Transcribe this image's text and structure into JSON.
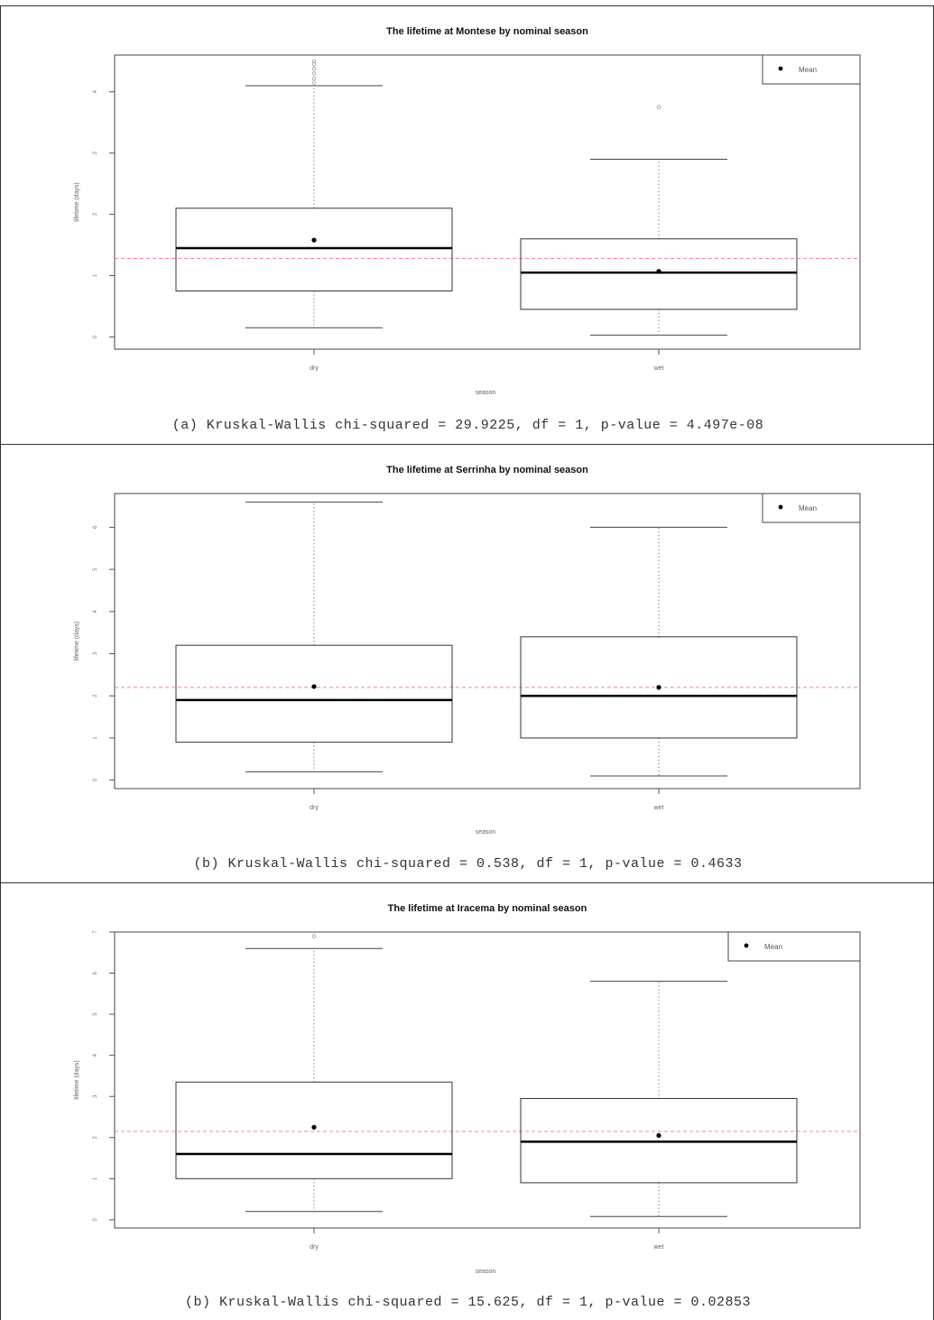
{
  "chart_data": [
    {
      "type": "box",
      "title": "The lifetime at Montese by nominal season",
      "xlabel": "season",
      "ylabel": "lifetime (days)",
      "categories": [
        "dry",
        "wet"
      ],
      "ylim": [
        -0.2,
        4.6
      ],
      "yticks": [
        0,
        1,
        2,
        3,
        4
      ],
      "reference_line": 1.28,
      "reference_color": "#ff7f9f",
      "legend": {
        "label": "Mean",
        "placement": "top-right"
      },
      "series": [
        {
          "category": "dry",
          "whisker_low": 0.15,
          "q1": 0.75,
          "median": 1.45,
          "q3": 2.1,
          "whisker_high": 4.1,
          "mean": 1.58,
          "outliers": [
            4.15,
            4.22,
            4.3,
            4.38,
            4.45,
            4.5
          ]
        },
        {
          "category": "wet",
          "whisker_low": 0.03,
          "q1": 0.45,
          "median": 1.05,
          "q3": 1.6,
          "whisker_high": 2.9,
          "mean": 1.07,
          "outliers": [
            3.75
          ]
        }
      ],
      "caption": "(a) Kruskal-Wallis chi-squared = 29.9225, df = 1, p-value = 4.497e-08"
    },
    {
      "type": "box",
      "title": "The lifetime at Serrinha by nominal season",
      "xlabel": "season",
      "ylabel": "lifetime (days)",
      "categories": [
        "dry",
        "wet"
      ],
      "ylim": [
        -0.2,
        6.8
      ],
      "yticks": [
        0,
        1,
        2,
        3,
        4,
        5,
        6
      ],
      "reference_line": 2.2,
      "reference_color": "#ff7f9f",
      "legend": {
        "label": "Mean",
        "placement": "top-right"
      },
      "series": [
        {
          "category": "dry",
          "whisker_low": 0.2,
          "q1": 0.9,
          "median": 1.9,
          "q3": 3.2,
          "whisker_high": 6.6,
          "mean": 2.22,
          "outliers": []
        },
        {
          "category": "wet",
          "whisker_low": 0.1,
          "q1": 1.0,
          "median": 2.0,
          "q3": 3.4,
          "whisker_high": 6.0,
          "mean": 2.2,
          "outliers": []
        }
      ],
      "caption": "(b) Kruskal-Wallis chi-squared = 0.538, df = 1, p-value = 0.4633"
    },
    {
      "type": "box",
      "title": "The lifetime at Iracema by nominal season",
      "xlabel": "season",
      "ylabel": "lifetime (days)",
      "categories": [
        "dry",
        "wet"
      ],
      "ylim": [
        -0.2,
        7.0
      ],
      "yticks": [
        0,
        1,
        2,
        3,
        4,
        5,
        6,
        7
      ],
      "reference_line": 2.15,
      "reference_color": "#ff7f9f",
      "legend": {
        "label": "Mean",
        "placement": "top-right"
      },
      "series": [
        {
          "category": "dry",
          "whisker_low": 0.2,
          "q1": 1.0,
          "median": 1.6,
          "q3": 3.35,
          "whisker_high": 6.6,
          "mean": 2.25,
          "outliers": [
            6.9
          ]
        },
        {
          "category": "wet",
          "whisker_low": 0.08,
          "q1": 0.9,
          "median": 1.9,
          "q3": 2.95,
          "whisker_high": 5.8,
          "mean": 2.05,
          "outliers": []
        }
      ],
      "caption": "(b) Kruskal-Wallis chi-squared = 15.625, df = 1, p-value = 0.02853"
    }
  ]
}
